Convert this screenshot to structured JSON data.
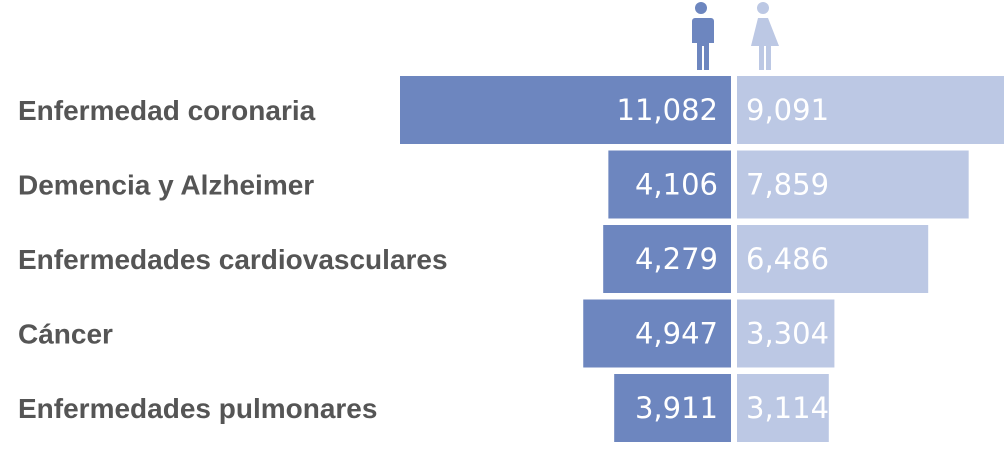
{
  "chart_data": {
    "type": "bar",
    "orientation": "horizontal-diverging",
    "categories": [
      "Enfermedad coronaria",
      "Demencia y Alzheimer",
      "Enfermedades cardiovasculares",
      "Cáncer",
      "Enfermedades pulmonares"
    ],
    "series": [
      {
        "icon": "male-icon",
        "values": [
          11082,
          4106,
          4279,
          4947,
          3911
        ],
        "labels": [
          "11,082",
          "4,106",
          "4,279",
          "4,947",
          "3,911"
        ]
      },
      {
        "icon": "female-icon",
        "values": [
          9091,
          7859,
          6486,
          3304,
          3114
        ],
        "labels": [
          "9,091",
          "7,859",
          "6,486",
          "3,304",
          "3,114"
        ]
      }
    ],
    "colors": {
      "male": "#6d86bf",
      "female": "#bcc8e4"
    },
    "grid": false,
    "legend": "icons above bars"
  }
}
